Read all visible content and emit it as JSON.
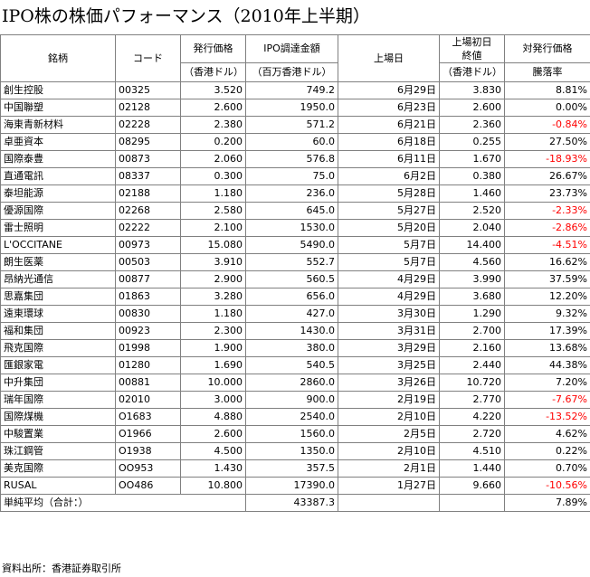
{
  "title": "IPO株の株価パフォーマンス（2010年上半期）",
  "headers": {
    "name": "銘柄",
    "code": "コード",
    "offer_price": "発行価格",
    "offer_unit": "（香港ドル）",
    "proceeds": "IPO調達金額",
    "proceeds_unit": "（百万香港ドル）",
    "listing_date": "上場日",
    "close_1": "上場初日",
    "close_2": "終値",
    "close_unit": "（香港ドル）",
    "vs_offer": "対発行価格",
    "change": "騰落率"
  },
  "rows": [
    {
      "name": "創生控股",
      "code": "00325",
      "offer": "3.520",
      "proceeds": "749.2",
      "date": "6月29日",
      "close": "3.830",
      "change": "8.81%",
      "negative": false
    },
    {
      "name": "中国聯塑",
      "code": "02128",
      "offer": "2.600",
      "proceeds": "1950.0",
      "date": "6月23日",
      "close": "2.600",
      "change": "0.00%",
      "negative": false
    },
    {
      "name": "海東青新材料",
      "code": "02228",
      "offer": "2.380",
      "proceeds": "571.2",
      "date": "6月21日",
      "close": "2.360",
      "change": "-0.84%",
      "negative": true
    },
    {
      "name": "卓亜資本",
      "code": "08295",
      "offer": "0.200",
      "proceeds": "60.0",
      "date": "6月18日",
      "close": "0.255",
      "change": "27.50%",
      "negative": false
    },
    {
      "name": "国際泰豊",
      "code": "00873",
      "offer": "2.060",
      "proceeds": "576.8",
      "date": "6月11日",
      "close": "1.670",
      "change": "-18.93%",
      "negative": true
    },
    {
      "name": "直通電訊",
      "code": "08337",
      "offer": "0.300",
      "proceeds": "75.0",
      "date": "6月2日",
      "close": "0.380",
      "change": "26.67%",
      "negative": false
    },
    {
      "name": "泰坦能源",
      "code": "02188",
      "offer": "1.180",
      "proceeds": "236.0",
      "date": "5月28日",
      "close": "1.460",
      "change": "23.73%",
      "negative": false
    },
    {
      "name": "優源国際",
      "code": "02268",
      "offer": "2.580",
      "proceeds": "645.0",
      "date": "5月27日",
      "close": "2.520",
      "change": "-2.33%",
      "negative": true
    },
    {
      "name": "雷士照明",
      "code": "02222",
      "offer": "2.100",
      "proceeds": "1530.0",
      "date": "5月20日",
      "close": "2.040",
      "change": "-2.86%",
      "negative": true
    },
    {
      "name": "L'OCCITANE",
      "code": "00973",
      "offer": "15.080",
      "proceeds": "5490.0",
      "date": "5月7日",
      "close": "14.400",
      "change": "-4.51%",
      "negative": true
    },
    {
      "name": "朗生医薬",
      "code": "00503",
      "offer": "3.910",
      "proceeds": "552.7",
      "date": "5月7日",
      "close": "4.560",
      "change": "16.62%",
      "negative": false
    },
    {
      "name": "昂納光通信",
      "code": "00877",
      "offer": "2.900",
      "proceeds": "560.5",
      "date": "4月29日",
      "close": "3.990",
      "change": "37.59%",
      "negative": false
    },
    {
      "name": "思嘉集団",
      "code": "01863",
      "offer": "3.280",
      "proceeds": "656.0",
      "date": "4月29日",
      "close": "3.680",
      "change": "12.20%",
      "negative": false
    },
    {
      "name": "遠東環球",
      "code": "00830",
      "offer": "1.180",
      "proceeds": "427.0",
      "date": "3月30日",
      "close": "1.290",
      "change": "9.32%",
      "negative": false
    },
    {
      "name": "福和集団",
      "code": "00923",
      "offer": "2.300",
      "proceeds": "1430.0",
      "date": "3月31日",
      "close": "2.700",
      "change": "17.39%",
      "negative": false
    },
    {
      "name": "飛克国際",
      "code": "01998",
      "offer": "1.900",
      "proceeds": "380.0",
      "date": "3月29日",
      "close": "2.160",
      "change": "13.68%",
      "negative": false
    },
    {
      "name": "匯銀家電",
      "code": "01280",
      "offer": "1.690",
      "proceeds": "540.5",
      "date": "3月25日",
      "close": "2.440",
      "change": "44.38%",
      "negative": false
    },
    {
      "name": "中升集団",
      "code": "00881",
      "offer": "10.000",
      "proceeds": "2860.0",
      "date": "3月26日",
      "close": "10.720",
      "change": "7.20%",
      "negative": false
    },
    {
      "name": "瑞年国際",
      "code": "02010",
      "offer": "3.000",
      "proceeds": "900.0",
      "date": "2月19日",
      "close": "2.770",
      "change": "-7.67%",
      "negative": true
    },
    {
      "name": "国際煤機",
      "code": "O1683",
      "offer": "4.880",
      "proceeds": "2540.0",
      "date": "2月10日",
      "close": "4.220",
      "change": "-13.52%",
      "negative": true
    },
    {
      "name": "中駿置業",
      "code": "O1966",
      "offer": "2.600",
      "proceeds": "1560.0",
      "date": "2月5日",
      "close": "2.720",
      "change": "4.62%",
      "negative": false
    },
    {
      "name": "珠江鋼管",
      "code": "O1938",
      "offer": "4.500",
      "proceeds": "1350.0",
      "date": "2月10日",
      "close": "4.510",
      "change": "0.22%",
      "negative": false
    },
    {
      "name": "美克国際",
      "code": "OO953",
      "offer": "1.430",
      "proceeds": "357.5",
      "date": "2月1日",
      "close": "1.440",
      "change": "0.70%",
      "negative": false
    },
    {
      "name": "RUSAL",
      "code": "OO486",
      "offer": "10.800",
      "proceeds": "17390.0",
      "date": "1月27日",
      "close": "9.660",
      "change": "-10.56%",
      "negative": true
    }
  ],
  "summary": {
    "label": "単純平均（合計：）",
    "proceeds": "43387.3",
    "change": "7.89%"
  },
  "source": "資料出所：香港証券取引所",
  "colors": {
    "negative": "#ff0000",
    "grid": "#808080"
  }
}
